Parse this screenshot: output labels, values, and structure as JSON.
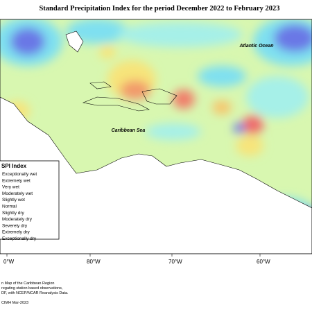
{
  "title": "Standard Precipitation Index for the period December 2022 to February 2023",
  "labels": {
    "atlantic": "Atlantic Ocean",
    "caribbean": "Caribbean Sea"
  },
  "legend": {
    "title": "SPI Index",
    "items": [
      "Exceptionally wet",
      "Extremely wet",
      "Very wet",
      "Moderately wet",
      "Slightly wet",
      "Normal",
      "Slightly dry",
      "Moderately dry",
      "Severely dry",
      "Extremely dry",
      "Exceptionally dry"
    ]
  },
  "longitudes": [
    "0°W",
    "80°W",
    "70°W",
    "60°W"
  ],
  "footer": [
    "n Map of the Caribbean Region",
    "regating station based observations,",
    "DF, with NCEP/NCAR Reanalysis Data.",
    "CIMH Mar-2023"
  ]
}
